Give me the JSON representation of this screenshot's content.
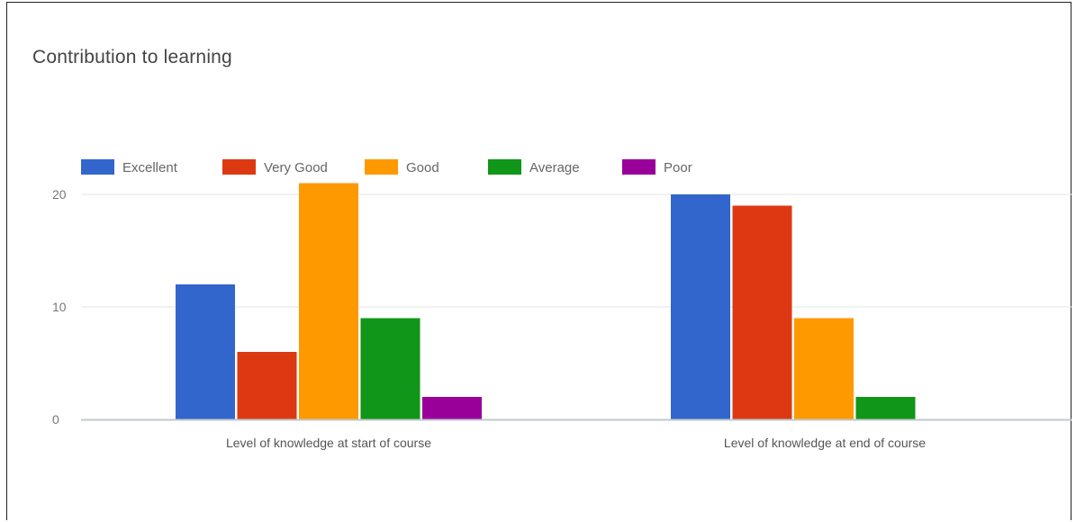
{
  "chart_data": {
    "type": "bar",
    "title": "Contribution to learning",
    "xlabel": "",
    "ylabel": "",
    "categories": [
      "Level of knowledge at start of course",
      "Level of knowledge at end of course"
    ],
    "series": [
      {
        "name": "Excellent",
        "color": "#3366cc",
        "values": [
          12,
          20
        ]
      },
      {
        "name": "Very Good",
        "color": "#dc3912",
        "values": [
          6,
          19
        ]
      },
      {
        "name": "Good",
        "color": "#ff9900",
        "values": [
          21,
          9
        ]
      },
      {
        "name": "Average",
        "color": "#109618",
        "values": [
          9,
          2
        ]
      },
      {
        "name": "Poor",
        "color": "#990099",
        "values": [
          2,
          0
        ]
      }
    ],
    "yticks": [
      0,
      10,
      20
    ],
    "ylim": [
      0,
      20
    ],
    "legend_position": "top-left",
    "grid": true
  }
}
